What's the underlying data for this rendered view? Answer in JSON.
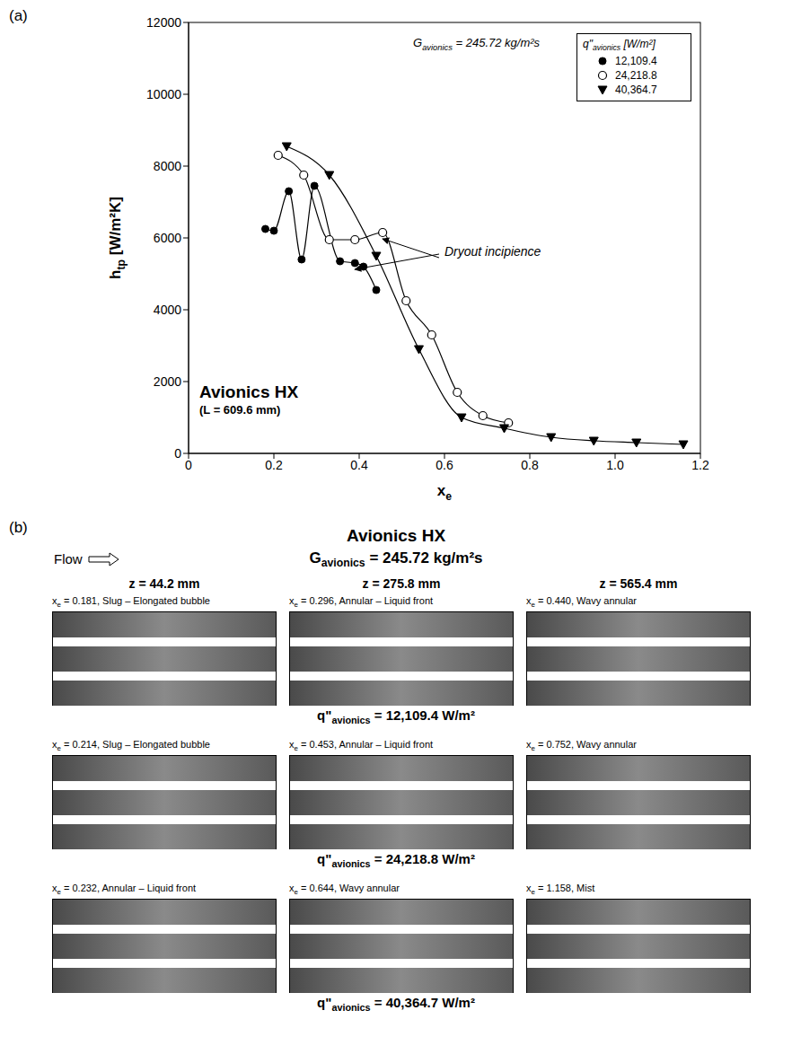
{
  "chart_data": {
    "type": "line",
    "panel_label": "(a)",
    "title": {
      "text": "Avionics HX",
      "after": ""
    },
    "subtitle": "(L = 609.6 mm)",
    "annotation_G": {
      "text": "G",
      "sub": "avionics",
      "after": " = 245.72 kg/m²s"
    },
    "x_label": {
      "text": "x",
      "sub": "e",
      "after": ""
    },
    "y_label": {
      "text": "h",
      "sub": "tp",
      "after": " [W/m²K]"
    },
    "xlim": [
      0,
      1.2
    ],
    "xticks": [
      0,
      0.2,
      0.4,
      0.6,
      0.8,
      {
        "value": 1,
        "label": "1.0"
      },
      1.2
    ],
    "ylim": [
      0,
      12000
    ],
    "yticks": [
      0,
      2000,
      4000,
      6000,
      8000,
      10000,
      12000
    ],
    "grid": false,
    "legend": "upper right",
    "legend_title": {
      "text": "q\"",
      "sub": "avionics",
      "after": " [W/m²]"
    },
    "series": [
      {
        "name": "12,109.4",
        "color": "#000000",
        "marker": "circle",
        "line_style": "solid",
        "x": [
          0.18,
          0.2,
          0.235,
          0.265,
          0.295,
          0.355,
          0.39,
          0.41,
          0.44
        ],
        "values": [
          6250,
          6200,
          7300,
          5400,
          7450,
          5350,
          5300,
          5200,
          4550
        ]
      },
      {
        "name": "24,218.8",
        "color": "#000000",
        "marker": "open_circle",
        "line_style": "solid",
        "x": [
          0.21,
          0.27,
          0.33,
          0.39,
          0.455,
          0.51,
          0.57,
          0.63,
          0.69,
          0.75
        ],
        "values": [
          8300,
          7750,
          5950,
          5950,
          6150,
          4250,
          3300,
          1700,
          1050,
          850
        ]
      },
      {
        "name": "40,364.7",
        "color": "#000000",
        "marker": "triangle_down",
        "line_style": "solid",
        "x": [
          0.23,
          0.33,
          0.44,
          0.54,
          0.64,
          0.74,
          0.85,
          0.95,
          1.05,
          1.16
        ],
        "values": [
          8550,
          7750,
          5500,
          2900,
          1000,
          700,
          450,
          350,
          300,
          250
        ]
      }
    ],
    "annotations": [
      {
        "text": "Dryout incipience",
        "arrows_to": [
          [
            0.39,
            5300
          ],
          [
            0.455,
            6150
          ]
        ]
      }
    ]
  },
  "photo_panel": {
    "label": "(b)",
    "title": "Avionics HX",
    "flow_label": "Flow",
    "subtitle": {
      "text": "G",
      "sub": "avionics",
      "after": " = 245.72 kg/m²s"
    },
    "columns": [
      "z = 44.2 mm",
      "z = 275.8 mm",
      "z = 565.4 mm"
    ],
    "caption_prefix": {
      "text": "x",
      "sub": "e",
      "after": " = "
    },
    "caption_separator": ", ",
    "rows": [
      {
        "flux": {
          "text": "q\"",
          "sub": "avionics",
          "after": " = 12,109.4 W/m²"
        },
        "cells": [
          {
            "x_e": "0.181",
            "regime": "Slug – Elongated bubble"
          },
          {
            "x_e": "0.296",
            "regime": "Annular – Liquid front"
          },
          {
            "x_e": "0.440",
            "regime": "Wavy annular"
          }
        ]
      },
      {
        "flux": {
          "text": "q\"",
          "sub": "avionics",
          "after": " = 24,218.8 W/m²"
        },
        "cells": [
          {
            "x_e": "0.214",
            "regime": "Slug – Elongated bubble"
          },
          {
            "x_e": "0.453",
            "regime": "Annular – Liquid front"
          },
          {
            "x_e": "0.752",
            "regime": "Wavy annular"
          }
        ]
      },
      {
        "flux": {
          "text": "q\"",
          "sub": "avionics",
          "after": " = 40,364.7 W/m²"
        },
        "cells": [
          {
            "x_e": "0.232",
            "regime": "Annular – Liquid front"
          },
          {
            "x_e": "0.644",
            "regime": "Wavy annular"
          },
          {
            "x_e": "1.158",
            "regime": "Mist"
          }
        ]
      }
    ]
  }
}
